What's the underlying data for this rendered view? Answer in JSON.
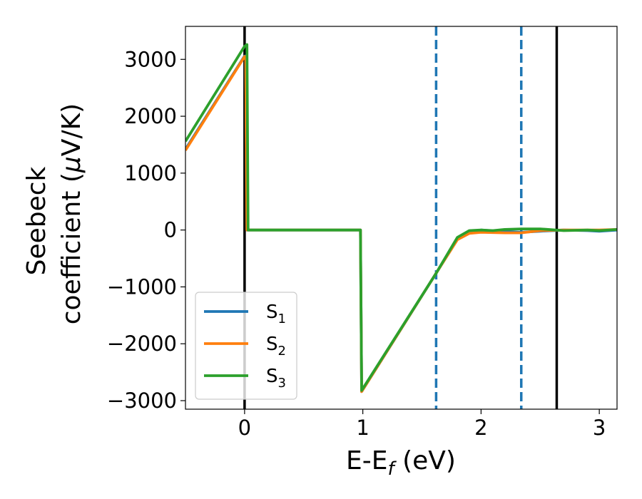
{
  "chart_data": {
    "type": "line",
    "xlabel": {
      "base": "E-E",
      "sub": "f",
      "unit": " (eV)"
    },
    "ylabel": {
      "line1": "Seebeck",
      "line2_pre": "coefficient  (",
      "mu": "μ",
      "line2_post": "V/K)"
    },
    "xlim": [
      -0.5,
      3.15
    ],
    "ylim": [
      -3150,
      3580
    ],
    "x_ticks": [
      0,
      1,
      2,
      3
    ],
    "x_tick_labels": [
      "0",
      "1",
      "2",
      "3"
    ],
    "y_ticks": [
      3000,
      2000,
      1000,
      0,
      -1000,
      -2000,
      -3000
    ],
    "y_tick_labels": [
      "3000",
      "2000",
      "1000",
      "0",
      "−1000",
      "−2000",
      "−3000"
    ],
    "grid": false,
    "legend_position": "lower-left",
    "vlines": [
      {
        "x": 0.0,
        "style": "solid",
        "color": "#000000"
      },
      {
        "x": 1.62,
        "style": "dashed",
        "color": "#1f77b4"
      },
      {
        "x": 2.34,
        "style": "dashed",
        "color": "#1f77b4"
      },
      {
        "x": 2.64,
        "style": "solid",
        "color": "#000000"
      }
    ],
    "series": [
      {
        "name_base": "S",
        "name_sub": "1",
        "color": "#1f77b4",
        "points": [
          [
            -0.5,
            1420
          ],
          [
            0.0,
            3060
          ],
          [
            0.01,
            3060
          ],
          [
            0.02,
            0
          ],
          [
            0.98,
            0
          ],
          [
            0.99,
            -2840
          ],
          [
            1.62,
            -760
          ],
          [
            1.8,
            -150
          ],
          [
            1.9,
            -30
          ],
          [
            2.0,
            0
          ],
          [
            2.2,
            -30
          ],
          [
            2.34,
            -40
          ],
          [
            2.5,
            -20
          ],
          [
            2.7,
            0
          ],
          [
            2.9,
            -10
          ],
          [
            3.0,
            -20
          ],
          [
            3.15,
            0
          ]
        ]
      },
      {
        "name_base": "S",
        "name_sub": "2",
        "color": "#ff7f0e",
        "points": [
          [
            -0.5,
            1400
          ],
          [
            0.0,
            3050
          ],
          [
            0.01,
            3050
          ],
          [
            0.02,
            0
          ],
          [
            0.98,
            0
          ],
          [
            0.99,
            -2840
          ],
          [
            1.62,
            -760
          ],
          [
            1.8,
            -170
          ],
          [
            1.9,
            -60
          ],
          [
            2.0,
            -40
          ],
          [
            2.2,
            -50
          ],
          [
            2.34,
            -50
          ],
          [
            2.5,
            -10
          ],
          [
            2.7,
            0
          ],
          [
            2.9,
            0
          ],
          [
            3.0,
            0
          ],
          [
            3.15,
            10
          ]
        ]
      },
      {
        "name_base": "S",
        "name_sub": "3",
        "color": "#2ca02c",
        "points": [
          [
            -0.5,
            1560
          ],
          [
            0.0,
            3230
          ],
          [
            0.02,
            3260
          ],
          [
            0.03,
            0
          ],
          [
            0.98,
            0
          ],
          [
            0.99,
            -2820
          ],
          [
            1.62,
            -760
          ],
          [
            1.8,
            -130
          ],
          [
            1.9,
            -10
          ],
          [
            2.0,
            0
          ],
          [
            2.1,
            -10
          ],
          [
            2.2,
            10
          ],
          [
            2.34,
            20
          ],
          [
            2.5,
            20
          ],
          [
            2.7,
            -10
          ],
          [
            2.9,
            0
          ],
          [
            3.0,
            -10
          ],
          [
            3.15,
            10
          ]
        ]
      }
    ]
  }
}
